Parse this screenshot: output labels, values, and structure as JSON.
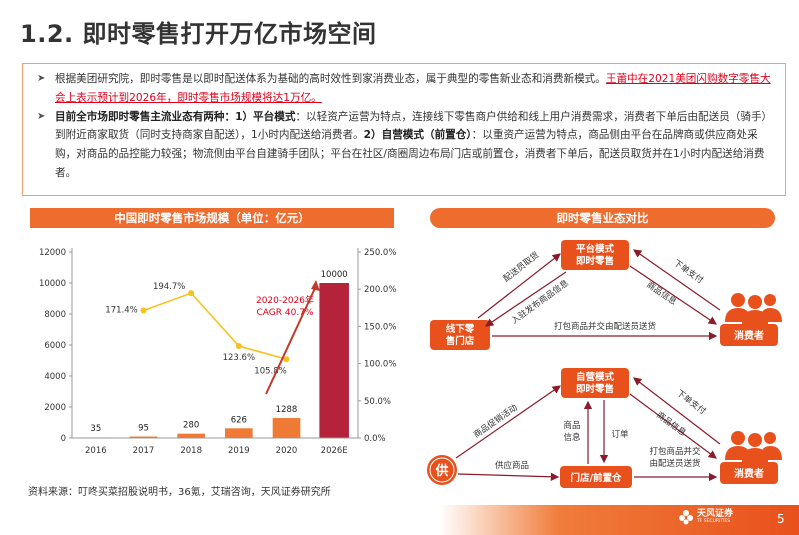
{
  "title": "1.2. 即时零售打开万亿市场空间",
  "summary": {
    "b1_text": "根据美团研究院，即时零售是以即时配送体系为基础的高时效性到家消费业态，属于典型的零售新业态和消费新模式。",
    "b1_highlight": "王莆中在2021美团闪购数字零售大会上表示预计到2026年，即时零售市场规模将达1万亿。",
    "b2_bold1": "目前全市场即时零售主流业态有两种：1）平台模式",
    "b2_text1": "：以轻资产运营为特点，连接线下零售商户供给和线上用户消费需求，消费者下单后由配送员（骑手）到附近商家取货（同时支持商家自配送），1小时内配送给消费者。",
    "b2_bold2": "2）自营模式（前置仓）",
    "b2_text2": "：以重资产运营为特点，商品侧由平台在品牌商或供应商处采购，对商品的品控能力较强；物流侧由平台自建骑手团队；平台在社区/商圈周边布局门店或前置仓，消费者下单后，配送员取货并在1小时内配送给消费者。"
  },
  "left_panel_title": "中国即时零售市场规模（单位：亿元）",
  "right_panel_title": "即时零售业态对比",
  "chart_data": {
    "type": "bar",
    "categories": [
      "2016",
      "2017",
      "2018",
      "2019",
      "2020",
      "2026E"
    ],
    "series": [
      {
        "name": "市场规模",
        "values": [
          35,
          95,
          280,
          626,
          1288,
          10000
        ],
        "value_labels": [
          "35",
          "95",
          "280",
          "626",
          "1288",
          "10000"
        ]
      },
      {
        "name": "增速",
        "type": "line",
        "x": [
          "2017",
          "2018",
          "2019",
          "2020"
        ],
        "values": [
          171.4,
          194.7,
          123.6,
          105.8
        ],
        "value_labels": [
          "171.4%",
          "194.7%",
          "123.6%",
          "105.8%"
        ]
      }
    ],
    "y_left_ticks": [
      "0",
      "2000",
      "4000",
      "6000",
      "8000",
      "10000",
      "12000"
    ],
    "y_right_ticks": [
      "0.0%",
      "50.0%",
      "100.0%",
      "150.0%",
      "200.0%",
      "250.0%"
    ],
    "ylim_left": [
      0,
      12000
    ],
    "ylim_right": [
      0,
      250
    ],
    "cagr_label_line1": "2020-2026年",
    "cagr_label_line2": "CAGR 40.7%",
    "colors": {
      "bar": "#ee7a35",
      "bar_highlight": "#b4233a",
      "line": "#f7c21c",
      "arrow": "#c0392b"
    }
  },
  "diagram": {
    "top": {
      "platform_node": "平台模式\n即时零售",
      "store_node": "线下零\n售门店",
      "consumer_label": "消费者",
      "edge_pickup": "配送员取货",
      "edge_publish": "入驻发布商品信息",
      "edge_order": "下单支付",
      "edge_info": "商品信息",
      "edge_deliver": "打包商品并交由配送员送货"
    },
    "bottom": {
      "self_node": "自营模式\n即时零售",
      "warehouse_node": "门店/前置仓",
      "supply_node": "供",
      "consumer_label": "消费者",
      "edge_promo": "商品促销活动",
      "edge_goods_info": "商品\n信息",
      "edge_order2": "订单",
      "edge_pay": "下单支付",
      "edge_info": "商品信息",
      "edge_deliver": "打包商品并交\n由配送员送货",
      "edge_supply": "供应商品"
    },
    "colors": {
      "node": "#e8501c",
      "stroke": "#8b1a2b"
    }
  },
  "source": "资料来源：叮咚买菜招股说明书，36氪，艾瑞咨询，天风证券研究所",
  "footer": {
    "logo_text": "天风证券",
    "logo_sub": "TF SECURITIES",
    "page": "5"
  }
}
